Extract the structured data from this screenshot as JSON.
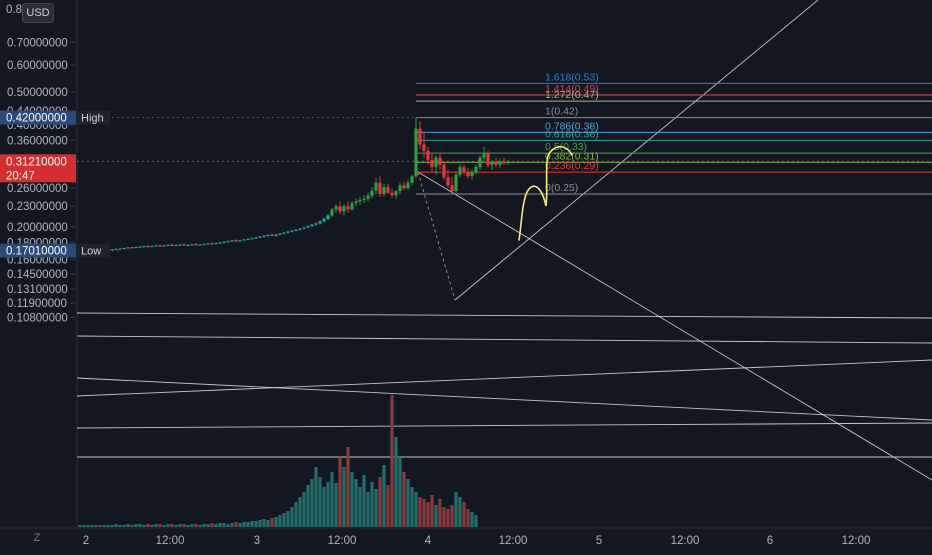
{
  "currency_button": "USD",
  "auto_scale_button": "Z",
  "chart_data": {
    "type": "candlestick",
    "y_scale": "log",
    "ylim": [
      0.1,
      0.8
    ],
    "y_ticks": [
      "0.8",
      "0.70000000",
      "0.60000000",
      "0.50000000",
      "0.44000000",
      "0.40000000",
      "0.36000000",
      "0.26000000",
      "0.23000000",
      "0.20000000",
      "0.18000000",
      "0.16000000",
      "0.14500000",
      "0.13100000",
      "0.11900000",
      "0.10800000"
    ],
    "x_ticks": [
      "2",
      "12:00",
      "3",
      "12:00",
      "4",
      "12:00",
      "5",
      "12:00",
      "6",
      "12:00"
    ],
    "markers": {
      "high": {
        "value": "0.42000000",
        "label": "High"
      },
      "last": {
        "value": "0.31210000",
        "countdown": "20:47"
      },
      "low": {
        "value": "0.17010000",
        "label": "Low"
      }
    },
    "fibonacci": [
      {
        "label": "1.618(0.53)",
        "ratio": 1.618,
        "price": 0.53,
        "color": "#2f7fd1"
      },
      {
        "label": "1.414(0.49)",
        "ratio": 1.414,
        "price": 0.49,
        "color": "#e0434f"
      },
      {
        "label": "1.272(0.47)",
        "ratio": 1.272,
        "price": 0.47,
        "color": "#9bb885"
      },
      {
        "label": "1(0.42)",
        "ratio": 1,
        "price": 0.42,
        "color": "#8c8f99"
      },
      {
        "label": "0.786(0.38)",
        "ratio": 0.786,
        "price": 0.38,
        "color": "#4fa3d9"
      },
      {
        "label": "0.618(0.36)",
        "ratio": 0.618,
        "price": 0.36,
        "color": "#26a69a"
      },
      {
        "label": "0.5(0.33)",
        "ratio": 0.5,
        "price": 0.33,
        "color": "#43a047"
      },
      {
        "label": "0.382(0.31)",
        "ratio": 0.382,
        "price": 0.31,
        "color": "#7cb342"
      },
      {
        "label": "0.236(0.29)",
        "ratio": 0.236,
        "price": 0.29,
        "color": "#e53935"
      },
      {
        "label": "0(0.25)",
        "ratio": 0,
        "price": 0.25,
        "color": "#8c8f99"
      }
    ],
    "colors": {
      "up": "#26a69a",
      "down": "#ef5350",
      "up_bright": "#2e9e3e",
      "down_bright": "#e53935",
      "volume_up": "#1f6f6a",
      "volume_down": "#8a3a3c",
      "drawing": "#e0e3eb",
      "forecast": "#f5e87a",
      "background": "#131722",
      "high_badge": "#2a4a7a",
      "last_badge": "#d32f2f"
    }
  }
}
